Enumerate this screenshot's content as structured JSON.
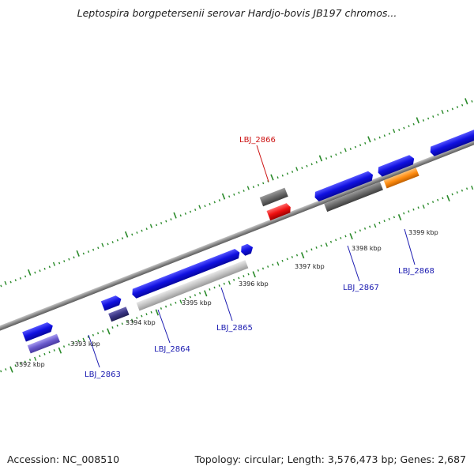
{
  "title": "Leptospira borgpetersenii serovar Hardjo-bovis JB197 chromos...",
  "footer": {
    "accession": "Accession: NC_008510",
    "stats": "Topology: circular; Length: 3,576,473 bp; Genes: 2,687"
  },
  "colors": {
    "backbone": "#8c8c8c",
    "tick": "#2a8a2a",
    "label_blue": "#1a1ab0",
    "label_red": "#cc1111",
    "gene_blue": "#1010e0",
    "gene_light_gray": "#c0c0c0",
    "gene_dark_gray": "#6a6a6a",
    "gene_red": "#ee1111",
    "gene_orange": "#ff8c10",
    "gene_navy": "#3a3585",
    "gene_lavender": "#6a5acd"
  },
  "diagram": {
    "scale_labels": [
      "3392 kbp",
      "3393 kbp",
      "3394 kbp",
      "3395 kbp",
      "3396 kbp",
      "3397 kbp",
      "3398 kbp",
      "3399 kbp"
    ],
    "genes": [
      {
        "label": "LBJ_2863"
      },
      {
        "label": "LBJ_2864"
      },
      {
        "label": "LBJ_2865"
      },
      {
        "label": "LBJ_2866"
      },
      {
        "label": "LBJ_2867"
      },
      {
        "label": "LBJ_2868"
      }
    ]
  }
}
